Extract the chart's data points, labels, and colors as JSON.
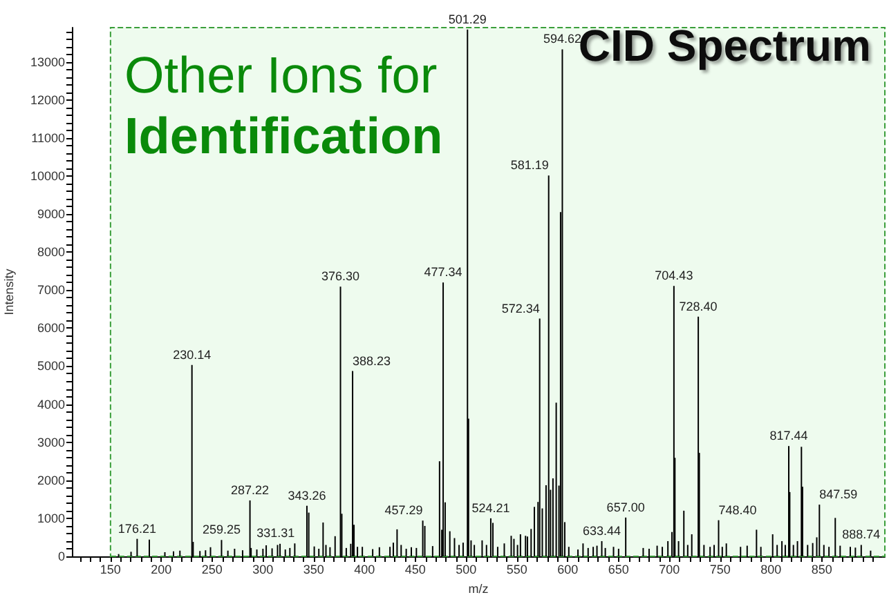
{
  "chart_data": {
    "type": "bar",
    "title": "CID Spectrum",
    "xlabel": "m/z",
    "ylabel": "Intensity",
    "annotations": [
      "Other Ions for",
      "Identification",
      {
        "text": "176.21",
        "x": 176.21,
        "y": 460
      },
      {
        "text": "230.14",
        "x": 230.14,
        "y": 5030
      },
      {
        "text": "259.25",
        "x": 259.25,
        "y": 430
      },
      {
        "text": "287.22",
        "x": 287.22,
        "y": 1470
      },
      {
        "text": "331.31",
        "x": 331.31,
        "y": 340
      },
      {
        "text": "343.26",
        "x": 343.26,
        "y": 1330
      },
      {
        "text": "376.30",
        "x": 376.3,
        "y": 7090
      },
      {
        "text": "388.23",
        "x": 388.23,
        "y": 4870
      },
      {
        "text": "457.29",
        "x": 457.29,
        "y": 940
      },
      {
        "text": "477.34",
        "x": 477.34,
        "y": 7200
      },
      {
        "text": "501.29",
        "x": 501.29,
        "y": 13850
      },
      {
        "text": "524.21",
        "x": 524.21,
        "y": 1000
      },
      {
        "text": "572.34",
        "x": 572.34,
        "y": 6250
      },
      {
        "text": "581.19",
        "x": 581.19,
        "y": 10010
      },
      {
        "text": "594.62",
        "x": 594.62,
        "y": 13330
      },
      {
        "text": "633.44",
        "x": 633.44,
        "y": 400
      },
      {
        "text": "657.00",
        "x": 657,
        "y": 1020
      },
      {
        "text": "704.43",
        "x": 704.43,
        "y": 7110
      },
      {
        "text": "728.40",
        "x": 728.4,
        "y": 6300
      },
      {
        "text": "748.40",
        "x": 748.4,
        "y": 950
      },
      {
        "text": "817.44",
        "x": 817.44,
        "y": 2900
      },
      {
        "text": "847.59",
        "x": 847.59,
        "y": 1360
      },
      {
        "text": "888.74",
        "x": 888.74,
        "y": 300
      }
    ],
    "color": "#000000",
    "x": [
      158,
      170.2,
      176.21,
      188.2,
      203.5,
      212,
      218.3,
      230.14,
      231.3,
      238,
      243.5,
      248.4,
      259.25,
      265.5,
      272.1,
      280,
      287.22,
      288.3,
      294,
      300,
      303.2,
      309,
      314.4,
      316.8,
      322,
      326.5,
      331.31,
      343.26,
      345.1,
      350.5,
      355,
      359.2,
      362,
      366,
      371,
      376.3,
      377.6,
      382,
      386.4,
      388.23,
      389.6,
      393,
      397.8,
      408,
      414.6,
      425,
      428.3,
      432,
      436,
      441,
      446,
      451,
      457.29,
      459.3,
      467,
      473.8,
      476,
      477.34,
      479.3,
      483.9,
      488.5,
      493,
      497,
      501.29,
      502.3,
      504.8,
      508,
      515.7,
      520,
      524.21,
      526.3,
      531,
      537.5,
      544.3,
      547,
      550.5,
      553.4,
      558.4,
      560.3,
      563.9,
      567.1,
      570.7,
      572.34,
      574.9,
      578.6,
      581.19,
      583,
      585.4,
      588.6,
      591.3,
      592.9,
      594.62,
      597,
      601,
      610,
      615,
      620,
      625,
      628.7,
      633.44,
      636.9,
      645,
      650,
      657,
      674.2,
      680,
      687.9,
      693,
      698.5,
      702.5,
      704.43,
      705.4,
      709,
      714.2,
      718,
      722,
      728.4,
      729.4,
      734,
      740,
      744,
      748.4,
      752,
      756,
      770,
      776.5,
      785.7,
      790,
      801.6,
      806,
      810.7,
      814,
      817.44,
      818.4,
      822,
      826,
      829.9,
      831,
      836,
      841,
      845,
      847.59,
      852,
      857,
      863.2,
      868,
      878,
      883,
      888.74,
      898
    ],
    "values": [
      60,
      120,
      460,
      440,
      110,
      130,
      150,
      5030,
      380,
      140,
      160,
      240,
      430,
      150,
      200,
      160,
      1470,
      220,
      180,
      200,
      290,
      210,
      300,
      330,
      180,
      220,
      340,
      1330,
      1150,
      260,
      200,
      890,
      300,
      240,
      530,
      7090,
      1120,
      220,
      330,
      4870,
      830,
      250,
      250,
      190,
      240,
      250,
      360,
      710,
      300,
      200,
      240,
      220,
      940,
      800,
      270,
      2500,
      700,
      7200,
      1420,
      660,
      480,
      300,
      360,
      13850,
      3620,
      420,
      300,
      420,
      300,
      1000,
      880,
      250,
      340,
      540,
      460,
      300,
      580,
      540,
      520,
      720,
      1300,
      1430,
      6250,
      1260,
      1870,
      10010,
      1750,
      2050,
      4040,
      1860,
      9050,
      13330,
      900,
      250,
      180,
      340,
      220,
      250,
      280,
      400,
      220,
      250,
      200,
      1020,
      220,
      200,
      280,
      250,
      400,
      640,
      7110,
      2590,
      400,
      1200,
      300,
      580,
      6300,
      2720,
      300,
      250,
      300,
      950,
      250,
      340,
      250,
      280,
      700,
      250,
      580,
      300,
      400,
      300,
      2900,
      1690,
      300,
      400,
      2880,
      1830,
      300,
      350,
      500,
      1360,
      300,
      250,
      1010,
      280,
      250,
      230,
      300,
      150
    ],
    "xlim": [
      112,
      912
    ],
    "ylim": [
      0,
      13900
    ],
    "xticks": [
      {
        "value": 120,
        "label": null
      },
      {
        "value": 130,
        "label": null
      },
      {
        "value": 140,
        "label": null
      },
      150,
      {
        "value": 160,
        "label": null
      },
      {
        "value": 170,
        "label": null
      },
      {
        "value": 180,
        "label": null
      },
      {
        "value": 190,
        "label": null
      },
      200,
      {
        "value": 210,
        "label": null
      },
      {
        "value": 220,
        "label": null
      },
      {
        "value": 230,
        "label": null
      },
      {
        "value": 240,
        "label": null
      },
      250,
      {
        "value": 260,
        "label": null
      },
      {
        "value": 270,
        "label": null
      },
      {
        "value": 280,
        "label": null
      },
      {
        "value": 290,
        "label": null
      },
      300,
      {
        "value": 310,
        "label": null
      },
      {
        "value": 320,
        "label": null
      },
      {
        "value": 330,
        "label": null
      },
      {
        "value": 340,
        "label": null
      },
      350,
      {
        "value": 360,
        "label": null
      },
      {
        "value": 370,
        "label": null
      },
      {
        "value": 380,
        "label": null
      },
      {
        "value": 390,
        "label": null
      },
      400,
      {
        "value": 410,
        "label": null
      },
      {
        "value": 420,
        "label": null
      },
      {
        "value": 430,
        "label": null
      },
      {
        "value": 440,
        "label": null
      },
      450,
      {
        "value": 460,
        "label": null
      },
      {
        "value": 470,
        "label": null
      },
      {
        "value": 480,
        "label": null
      },
      {
        "value": 490,
        "label": null
      },
      500,
      {
        "value": 510,
        "label": null
      },
      {
        "value": 520,
        "label": null
      },
      {
        "value": 530,
        "label": null
      },
      {
        "value": 540,
        "label": null
      },
      550,
      {
        "value": 560,
        "label": null
      },
      {
        "value": 570,
        "label": null
      },
      {
        "value": 580,
        "label": null
      },
      {
        "value": 590,
        "label": null
      },
      600,
      {
        "value": 610,
        "label": null
      },
      {
        "value": 620,
        "label": null
      },
      {
        "value": 630,
        "label": null
      },
      {
        "value": 640,
        "label": null
      },
      650,
      {
        "value": 660,
        "label": null
      },
      {
        "value": 670,
        "label": null
      },
      {
        "value": 680,
        "label": null
      },
      {
        "value": 690,
        "label": null
      },
      700,
      {
        "value": 710,
        "label": null
      },
      {
        "value": 720,
        "label": null
      },
      {
        "value": 730,
        "label": null
      },
      {
        "value": 740,
        "label": null
      },
      750,
      {
        "value": 760,
        "label": null
      },
      {
        "value": 770,
        "label": null
      },
      {
        "value": 780,
        "label": null
      },
      {
        "value": 790,
        "label": null
      },
      800,
      {
        "value": 810,
        "label": null
      },
      {
        "value": 820,
        "label": null
      },
      {
        "value": 830,
        "label": null
      },
      {
        "value": 840,
        "label": null
      },
      850,
      {
        "value": 860,
        "label": null
      },
      {
        "value": 870,
        "label": null
      },
      {
        "value": 880,
        "label": null
      },
      {
        "value": 890,
        "label": null
      },
      {
        "value": 900,
        "label": null
      }
    ],
    "yticks": [
      0,
      {
        "value": 200,
        "label": null
      },
      {
        "value": 400,
        "label": null
      },
      {
        "value": 600,
        "label": null
      },
      {
        "value": 800,
        "label": null
      },
      1000,
      {
        "value": 1200,
        "label": null
      },
      {
        "value": 1400,
        "label": null
      },
      {
        "value": 1600,
        "label": null
      },
      {
        "value": 1800,
        "label": null
      },
      2000,
      {
        "value": 2200,
        "label": null
      },
      {
        "value": 2400,
        "label": null
      },
      {
        "value": 2600,
        "label": null
      },
      {
        "value": 2800,
        "label": null
      },
      3000,
      {
        "value": 3200,
        "label": null
      },
      {
        "value": 3400,
        "label": null
      },
      {
        "value": 3600,
        "label": null
      },
      {
        "value": 3800,
        "label": null
      },
      4000,
      {
        "value": 4200,
        "label": null
      },
      {
        "value": 4400,
        "label": null
      },
      {
        "value": 4600,
        "label": null
      },
      {
        "value": 4800,
        "label": null
      },
      5000,
      {
        "value": 5200,
        "label": null
      },
      {
        "value": 5400,
        "label": null
      },
      {
        "value": 5600,
        "label": null
      },
      {
        "value": 5800,
        "label": null
      },
      6000,
      {
        "value": 6200,
        "label": null
      },
      {
        "value": 6400,
        "label": null
      },
      {
        "value": 6600,
        "label": null
      },
      {
        "value": 6800,
        "label": null
      },
      7000,
      {
        "value": 7200,
        "label": null
      },
      {
        "value": 7400,
        "label": null
      },
      {
        "value": 7600,
        "label": null
      },
      {
        "value": 7800,
        "label": null
      },
      8000,
      {
        "value": 8200,
        "label": null
      },
      {
        "value": 8400,
        "label": null
      },
      {
        "value": 8600,
        "label": null
      },
      {
        "value": 8800,
        "label": null
      },
      9000,
      {
        "value": 9200,
        "label": null
      },
      {
        "value": 9400,
        "label": null
      },
      {
        "value": 9600,
        "label": null
      },
      {
        "value": 9800,
        "label": null
      },
      10000,
      {
        "value": 10200,
        "label": null
      },
      {
        "value": 10400,
        "label": null
      },
      {
        "value": 10600,
        "label": null
      },
      {
        "value": 10800,
        "label": null
      },
      11000,
      {
        "value": 11200,
        "label": null
      },
      {
        "value": 11400,
        "label": null
      },
      {
        "value": 11600,
        "label": null
      },
      {
        "value": 11800,
        "label": null
      },
      12000,
      {
        "value": 12200,
        "label": null
      },
      {
        "value": 12400,
        "label": null
      },
      {
        "value": 12600,
        "label": null
      },
      {
        "value": 12800,
        "label": null
      },
      13000,
      {
        "value": 13200,
        "label": null
      },
      {
        "value": 13400,
        "label": null
      },
      {
        "value": 13600,
        "label": null
      },
      {
        "value": 13800,
        "label": null
      }
    ],
    "bands": [
      {
        "axis": "x",
        "from": 150,
        "to": 912,
        "color": "#eefbee"
      }
    ]
  }
}
